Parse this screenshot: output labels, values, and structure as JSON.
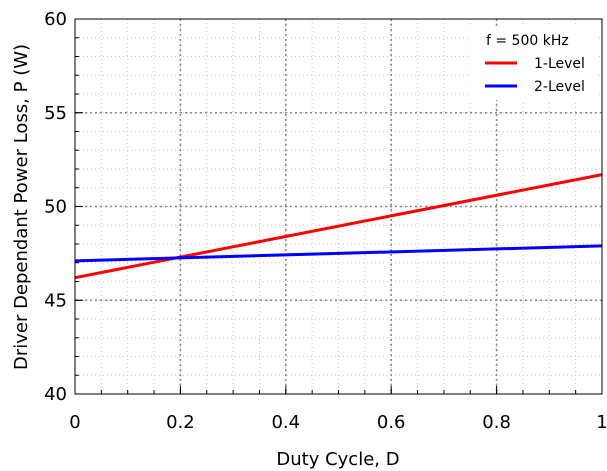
{
  "chart_data": {
    "type": "line",
    "title": "",
    "xlabel": "Duty Cycle, D",
    "ylabel": "Driver Dependant Power Loss, P (W)",
    "xlim": [
      0,
      1
    ],
    "ylim": [
      40,
      60
    ],
    "xticks": [
      0,
      0.2,
      0.4,
      0.6,
      0.8,
      1
    ],
    "xtick_labels": [
      "0",
      "0.2",
      "0.4",
      "0.6",
      "0.8",
      "1"
    ],
    "yticks": [
      40,
      45,
      50,
      55,
      60
    ],
    "ytick_labels": [
      "40",
      "45",
      "50",
      "55",
      "60"
    ],
    "grid": true,
    "legend_position": "top-right",
    "legend_title": "f = 500 kHz",
    "series": [
      {
        "name": "1-Level",
        "color": "#ff0000",
        "x": [
          0,
          1
        ],
        "y": [
          46.2,
          51.7
        ]
      },
      {
        "name": "2-Level",
        "color": "#0000ff",
        "x": [
          0,
          1
        ],
        "y": [
          47.1,
          47.9
        ]
      }
    ]
  }
}
